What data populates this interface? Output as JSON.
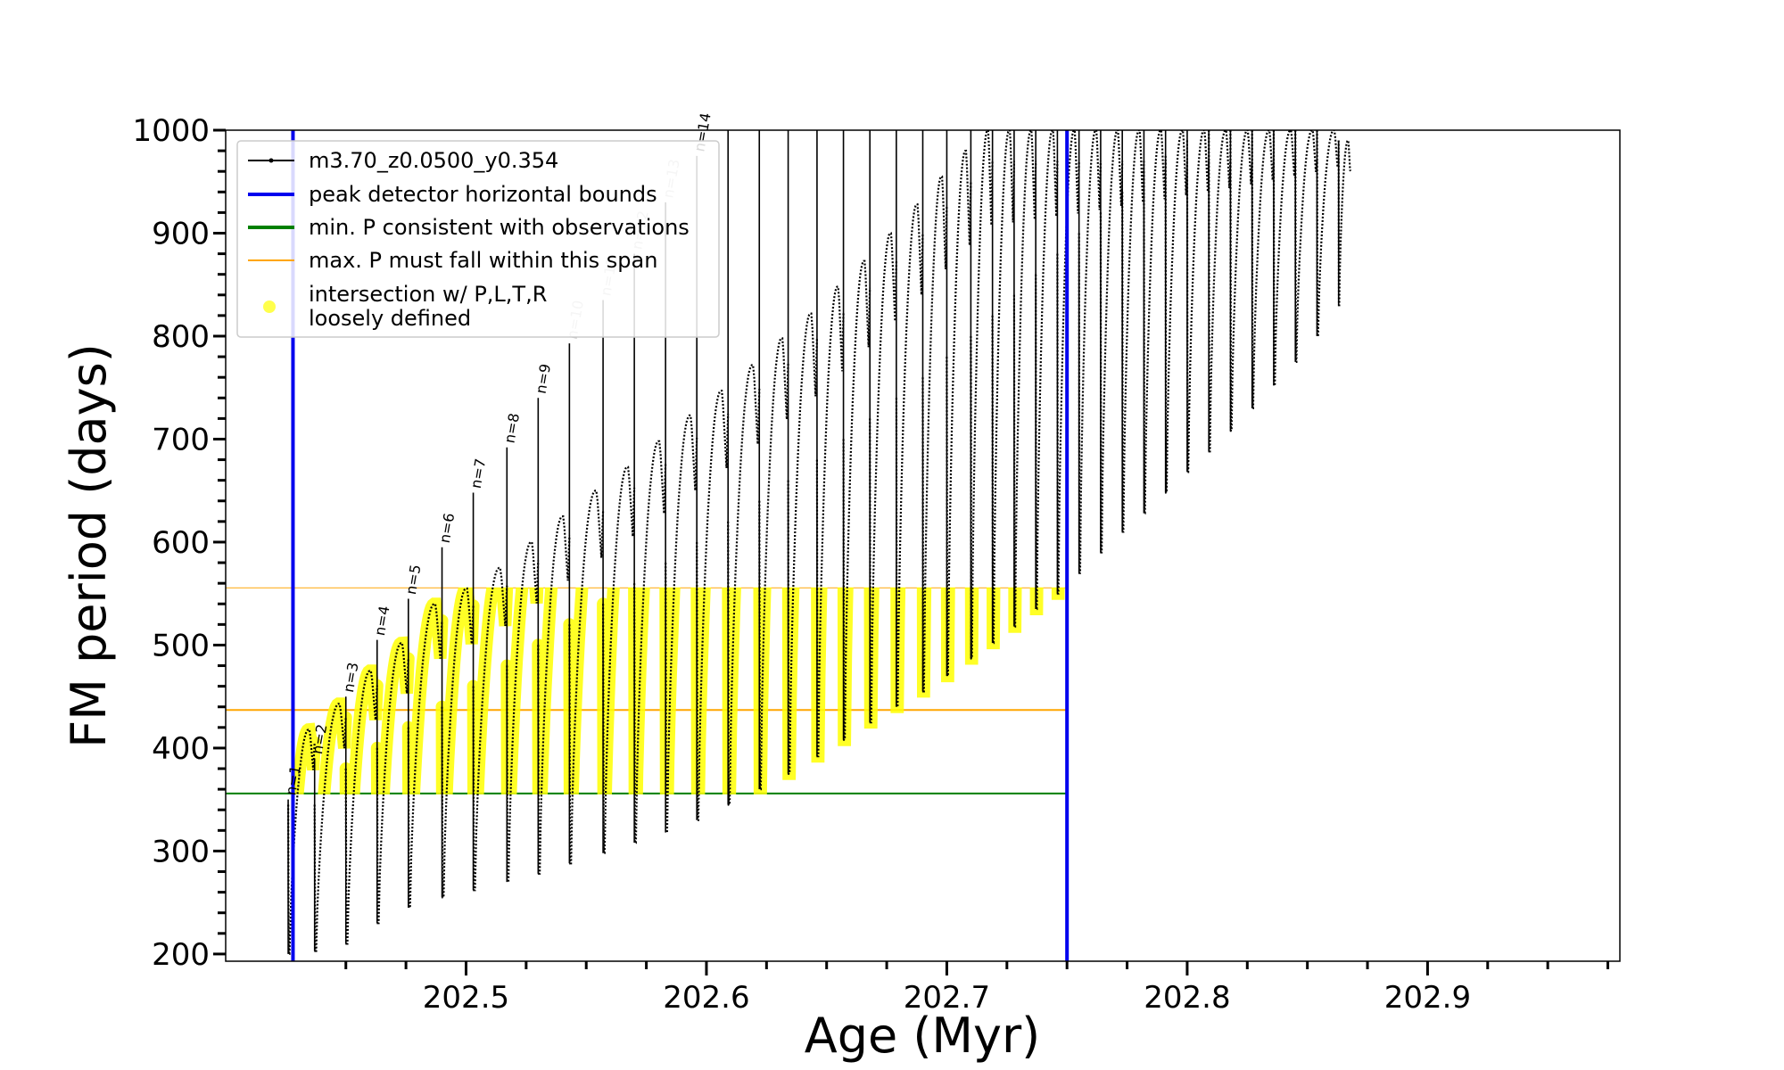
{
  "chart_data": {
    "type": "line",
    "title": "",
    "xlabel": "Age (Myr)",
    "ylabel": "FM period (days)",
    "xlim": [
      202.4,
      202.98
    ],
    "ylim": [
      193,
      1000
    ],
    "x_ticks": [
      202.5,
      202.6,
      202.7,
      202.8,
      202.9
    ],
    "x_tick_labels": [
      "202.5",
      "202.6",
      "202.7",
      "202.8",
      "202.9"
    ],
    "y_ticks": [
      200,
      300,
      400,
      500,
      600,
      700,
      800,
      900,
      1000
    ],
    "y_tick_labels": [
      "200",
      "300",
      "400",
      "500",
      "600",
      "700",
      "800",
      "900",
      "1000"
    ],
    "grid": false,
    "legend_position": "top-left",
    "legend": [
      {
        "label": "m3.70_z0.0500_y0.354",
        "color": "#000000",
        "kind": "line-marker"
      },
      {
        "label": "peak detector horizontal bounds",
        "color": "#0000ee",
        "kind": "line"
      },
      {
        "label": "min. P consistent with observations",
        "color": "#008000",
        "kind": "line"
      },
      {
        "label": "max. P must fall within this span",
        "color": "#ffa500",
        "kind": "line"
      },
      {
        "label": "intersection w/ P,L,T,R\nloosely defined",
        "color": "#ffff00",
        "kind": "marker"
      }
    ],
    "reference_lines": {
      "vertical_age": [
        202.428,
        202.75
      ],
      "min_period": 355,
      "max_period_span": [
        437,
        556
      ]
    },
    "series": [
      {
        "name": "m3.70_z0.0500_y0.354",
        "color": "#000000",
        "pulses": [
          {
            "onset_age": 202.426,
            "end_age": 202.437,
            "min_period": 200,
            "max_period": 345,
            "peak_period": 418,
            "spike_period": 350,
            "label": "n=1"
          },
          {
            "onset_age": 202.437,
            "end_age": 202.45,
            "min_period": 203,
            "max_period": 345,
            "peak_period": 443,
            "spike_period": 390,
            "label": "n=2"
          },
          {
            "onset_age": 202.45,
            "end_age": 202.463,
            "min_period": 210,
            "max_period": 380,
            "peak_period": 475,
            "spike_period": 450,
            "label": "n=3"
          },
          {
            "onset_age": 202.463,
            "end_age": 202.476,
            "min_period": 230,
            "max_period": 400,
            "peak_period": 502,
            "spike_period": 505,
            "label": "n=4"
          },
          {
            "onset_age": 202.476,
            "end_age": 202.49,
            "min_period": 245,
            "max_period": 420,
            "peak_period": 540,
            "spike_period": 545,
            "label": "n=5"
          },
          {
            "onset_age": 202.49,
            "end_age": 202.503,
            "min_period": 255,
            "max_period": 440,
            "peak_period": 555,
            "spike_period": 595,
            "label": "n=6"
          },
          {
            "onset_age": 202.503,
            "end_age": 202.517,
            "min_period": 262,
            "max_period": 460,
            "peak_period": 575,
            "spike_period": 648,
            "label": "n=7"
          },
          {
            "onset_age": 202.517,
            "end_age": 202.53,
            "min_period": 270,
            "max_period": 480,
            "peak_period": 600,
            "spike_period": 692,
            "label": "n=8"
          },
          {
            "onset_age": 202.53,
            "end_age": 202.543,
            "min_period": 278,
            "max_period": 500,
            "peak_period": 625,
            "spike_period": 740,
            "label": "n=9"
          },
          {
            "onset_age": 202.543,
            "end_age": 202.557,
            "min_period": 288,
            "max_period": 520,
            "peak_period": 650,
            "spike_period": 793,
            "label": "n=10"
          },
          {
            "onset_age": 202.557,
            "end_age": 202.57,
            "min_period": 298,
            "max_period": 540,
            "peak_period": 673,
            "spike_period": 835,
            "label": "n=11"
          },
          {
            "onset_age": 202.57,
            "end_age": 202.583,
            "min_period": 308,
            "max_period": 560,
            "peak_period": 698,
            "spike_period": 880,
            "label": "n=12"
          },
          {
            "onset_age": 202.583,
            "end_age": 202.596,
            "min_period": 318,
            "max_period": 580,
            "peak_period": 723,
            "spike_period": 930,
            "label": "n=13"
          },
          {
            "onset_age": 202.596,
            "end_age": 202.609,
            "min_period": 330,
            "max_period": 600,
            "peak_period": 747,
            "spike_period": 975,
            "label": "n=14"
          },
          {
            "onset_age": 202.609,
            "end_age": 202.622,
            "min_period": 345,
            "max_period": 620,
            "peak_period": 772,
            "spike_period": 1000,
            "label": ""
          },
          {
            "onset_age": 202.622,
            "end_age": 202.634,
            "min_period": 360,
            "max_period": 640,
            "peak_period": 798,
            "spike_period": 1000,
            "label": ""
          },
          {
            "onset_age": 202.634,
            "end_age": 202.646,
            "min_period": 375,
            "max_period": 660,
            "peak_period": 822,
            "spike_period": 1000,
            "label": ""
          },
          {
            "onset_age": 202.646,
            "end_age": 202.657,
            "min_period": 392,
            "max_period": 680,
            "peak_period": 848,
            "spike_period": 1000,
            "label": ""
          },
          {
            "onset_age": 202.657,
            "end_age": 202.668,
            "min_period": 408,
            "max_period": 700,
            "peak_period": 873,
            "spike_period": 1000,
            "label": ""
          },
          {
            "onset_age": 202.668,
            "end_age": 202.679,
            "min_period": 425,
            "max_period": 720,
            "peak_period": 900,
            "spike_period": 1000,
            "label": ""
          },
          {
            "onset_age": 202.679,
            "end_age": 202.69,
            "min_period": 440,
            "max_period": 740,
            "peak_period": 928,
            "spike_period": 1000,
            "label": ""
          },
          {
            "onset_age": 202.69,
            "end_age": 202.7,
            "min_period": 455,
            "max_period": 760,
            "peak_period": 955,
            "spike_period": 1000,
            "label": ""
          },
          {
            "onset_age": 202.7,
            "end_age": 202.71,
            "min_period": 470,
            "max_period": 780,
            "peak_period": 980,
            "spike_period": 1000,
            "label": ""
          },
          {
            "onset_age": 202.71,
            "end_age": 202.719,
            "min_period": 487,
            "max_period": 800,
            "peak_period": 1000,
            "spike_period": 1000,
            "label": ""
          },
          {
            "onset_age": 202.719,
            "end_age": 202.728,
            "min_period": 502,
            "max_period": 820,
            "peak_period": 1000,
            "spike_period": 1000,
            "label": ""
          },
          {
            "onset_age": 202.728,
            "end_age": 202.737,
            "min_period": 518,
            "max_period": 840,
            "peak_period": 1000,
            "spike_period": 1000,
            "label": ""
          },
          {
            "onset_age": 202.737,
            "end_age": 202.746,
            "min_period": 535,
            "max_period": 860,
            "peak_period": 1000,
            "spike_period": 1000,
            "label": ""
          },
          {
            "onset_age": 202.746,
            "end_age": 202.755,
            "min_period": 550,
            "max_period": 880,
            "peak_period": 1000,
            "spike_period": 1000,
            "label": ""
          },
          {
            "onset_age": 202.755,
            "end_age": 202.764,
            "min_period": 570,
            "max_period": 900,
            "peak_period": 1000,
            "spike_period": 1000,
            "label": ""
          },
          {
            "onset_age": 202.764,
            "end_age": 202.773,
            "min_period": 590,
            "max_period": 920,
            "peak_period": 1000,
            "spike_period": 1000,
            "label": ""
          },
          {
            "onset_age": 202.773,
            "end_age": 202.782,
            "min_period": 610,
            "max_period": 940,
            "peak_period": 1000,
            "spike_period": 1000,
            "label": ""
          },
          {
            "onset_age": 202.782,
            "end_age": 202.791,
            "min_period": 628,
            "max_period": 960,
            "peak_period": 1000,
            "spike_period": 1000,
            "label": ""
          },
          {
            "onset_age": 202.791,
            "end_age": 202.8,
            "min_period": 648,
            "max_period": 975,
            "peak_period": 1000,
            "spike_period": 1000,
            "label": ""
          },
          {
            "onset_age": 202.8,
            "end_age": 202.809,
            "min_period": 668,
            "max_period": 990,
            "peak_period": 1000,
            "spike_period": 1000,
            "label": ""
          },
          {
            "onset_age": 202.809,
            "end_age": 202.818,
            "min_period": 688,
            "max_period": 1000,
            "peak_period": 1000,
            "spike_period": 1000,
            "label": ""
          },
          {
            "onset_age": 202.818,
            "end_age": 202.827,
            "min_period": 708,
            "max_period": 1000,
            "peak_period": 1000,
            "spike_period": 1000,
            "label": ""
          },
          {
            "onset_age": 202.827,
            "end_age": 202.836,
            "min_period": 730,
            "max_period": 1000,
            "peak_period": 1000,
            "spike_period": 1000,
            "label": ""
          },
          {
            "onset_age": 202.836,
            "end_age": 202.845,
            "min_period": 752,
            "max_period": 1000,
            "peak_period": 1000,
            "spike_period": 1000,
            "label": ""
          },
          {
            "onset_age": 202.845,
            "end_age": 202.854,
            "min_period": 775,
            "max_period": 1000,
            "peak_period": 1000,
            "spike_period": 1000,
            "label": ""
          },
          {
            "onset_age": 202.854,
            "end_age": 202.863,
            "min_period": 800,
            "max_period": 1000,
            "peak_period": 1000,
            "spike_period": 1000,
            "label": ""
          },
          {
            "onset_age": 202.863,
            "end_age": 202.868,
            "min_period": 830,
            "max_period": 990,
            "peak_period": 990,
            "spike_period": 990,
            "label": ""
          }
        ]
      }
    ]
  }
}
